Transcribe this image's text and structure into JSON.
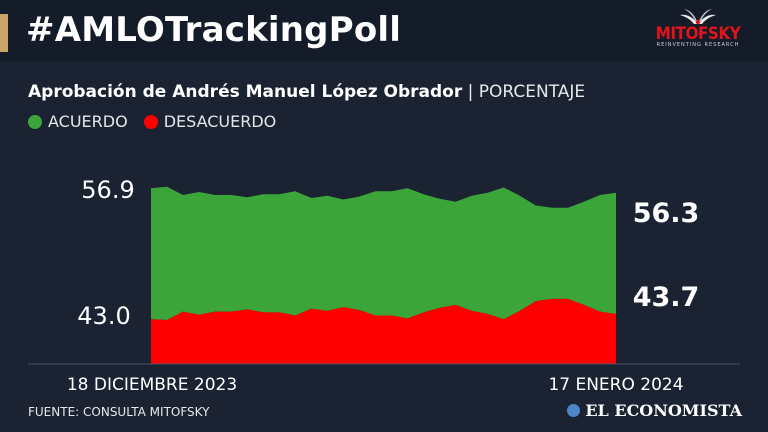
{
  "header": {
    "title": "#AMLOTrackingPoll",
    "logo_brand": "MITOFSKY",
    "logo_tagline": "REINVENTING RESEARCH"
  },
  "subtitle": {
    "bold": "Aprobación de Andrés Manuel López Obrador",
    "separator": " | ",
    "light": "PORCENTAJE"
  },
  "legend": [
    {
      "label": "ACUERDO",
      "color": "#3ba53a"
    },
    {
      "label": "DESACUERDO",
      "color": "#ff0000"
    }
  ],
  "footer": {
    "source": "FUENTE: CONSULTA MITOFSKY",
    "publisher": "EL ECONOMISTA"
  },
  "chart_data": {
    "type": "area",
    "stacked": true,
    "x_start_label": "18 DICIEMBRE 2023",
    "x_end_label": "17 ENERO 2024",
    "first_acuerdo_label": "56.9",
    "first_desacuerdo_label": "43.0",
    "last_acuerdo_label": "56.3",
    "last_desacuerdo_label": "43.7",
    "colors": {
      "acuerdo": "#3ba53a",
      "desacuerdo": "#ff0000"
    },
    "series": [
      {
        "name": "ACUERDO",
        "values": [
          56.9,
          57.1,
          56.0,
          56.4,
          56.0,
          56.0,
          55.7,
          56.1,
          56.1,
          56.5,
          55.6,
          55.9,
          55.4,
          55.8,
          56.5,
          56.5,
          56.9,
          56.1,
          55.5,
          55.1,
          55.9,
          56.3,
          57.0,
          55.9,
          54.6,
          54.3,
          54.3,
          55.1,
          56.0,
          56.3
        ]
      },
      {
        "name": "DESACUERDO",
        "values": [
          43.0,
          42.9,
          44.0,
          43.6,
          44.0,
          44.0,
          44.3,
          43.9,
          43.9,
          43.5,
          44.4,
          44.1,
          44.6,
          44.2,
          43.5,
          43.5,
          43.1,
          43.9,
          44.5,
          44.9,
          44.1,
          43.7,
          43.0,
          44.1,
          45.4,
          45.7,
          45.7,
          44.9,
          44.0,
          43.7
        ]
      }
    ]
  }
}
